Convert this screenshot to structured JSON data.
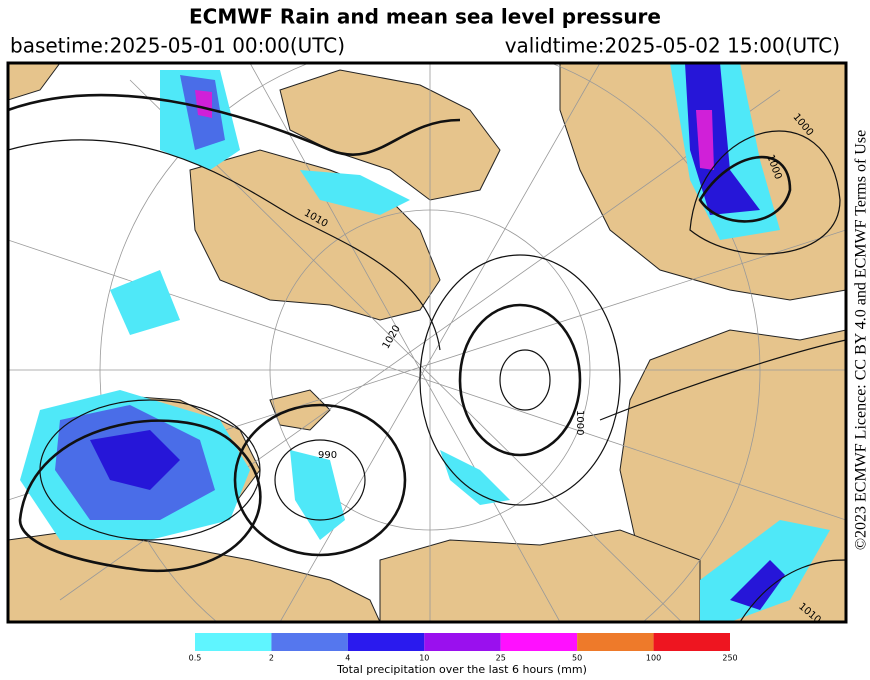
{
  "header": {
    "title": "ECMWF Rain and mean sea level pressure",
    "basetime": "basetime:2025-05-01 00:00(UTC)",
    "validtime": "validtime:2025-05-02 15:00(UTC)"
  },
  "licence": "©2023 ECMWF Licence: CC BY 4.0 and ECMWF Terms of Use",
  "map_labels": [
    "1010",
    "1000",
    "1000",
    "990",
    "1020",
    "1000",
    "1010"
  ],
  "legend": {
    "ticks": [
      "0.5",
      "2",
      "4",
      "10",
      "25",
      "50",
      "100",
      "250"
    ],
    "colors": [
      "#5ff5ff",
      "#5577ee",
      "#2a1aee",
      "#9a10ee",
      "#ff10ff",
      "#ee7a2a",
      "#ee1520"
    ],
    "caption": "Total precipitation over the last 6 hours (mm)"
  }
}
